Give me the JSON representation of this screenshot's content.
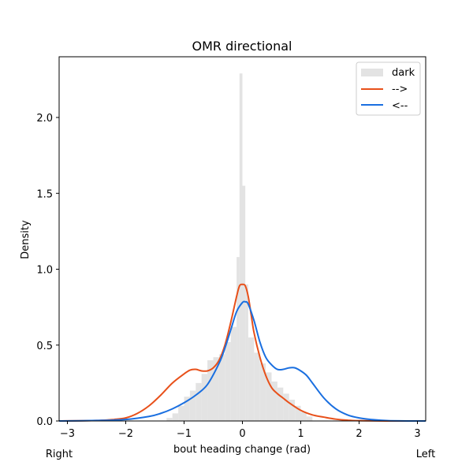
{
  "chart_data": {
    "type": "area",
    "title": "OMR directional",
    "xlabel": "bout heading change (rad)",
    "ylabel": "Density",
    "xlim": [
      -3.14159,
      3.14159
    ],
    "ylim": [
      0,
      2.4
    ],
    "xticks": [
      -3,
      -2,
      -1,
      0,
      1,
      2,
      3
    ],
    "xtick_labels": [
      "−3",
      "−2",
      "−1",
      "0",
      "1",
      "2",
      "3"
    ],
    "yticks": [
      0,
      0.5,
      1.0,
      1.5,
      2.0
    ],
    "ytick_labels": [
      "0.0",
      "0.5",
      "1.0",
      "1.5",
      "2.0"
    ],
    "corner_labels": {
      "left": "Right",
      "right": "Left"
    },
    "legend_position": "top-right",
    "grid": false,
    "histogram": {
      "name": "dark",
      "color": "#e3e3e3",
      "bin_edges": [
        -1.3,
        -1.2,
        -1.1,
        -1.0,
        -0.9,
        -0.8,
        -0.7,
        -0.6,
        -0.5,
        -0.4,
        -0.3,
        -0.2,
        -0.1,
        -0.05,
        0.0,
        0.05,
        0.1,
        0.2,
        0.3,
        0.4,
        0.5,
        0.6,
        0.7,
        0.8,
        0.9,
        1.0,
        1.1,
        1.2
      ],
      "values": [
        0.02,
        0.05,
        0.1,
        0.16,
        0.2,
        0.25,
        0.31,
        0.4,
        0.42,
        0.44,
        0.52,
        0.62,
        1.08,
        2.29,
        1.55,
        0.9,
        0.55,
        0.45,
        0.38,
        0.32,
        0.26,
        0.22,
        0.18,
        0.14,
        0.1,
        0.06,
        0.03
      ]
    },
    "series": [
      {
        "name": "-->",
        "color": "#e8501a",
        "x": [
          -3.14,
          -2.5,
          -2.2,
          -2.0,
          -1.8,
          -1.6,
          -1.4,
          -1.2,
          -1.0,
          -0.9,
          -0.8,
          -0.7,
          -0.6,
          -0.5,
          -0.4,
          -0.3,
          -0.2,
          -0.1,
          -0.05,
          0.0,
          0.05,
          0.1,
          0.15,
          0.2,
          0.3,
          0.4,
          0.5,
          0.6,
          0.7,
          0.8,
          1.0,
          1.2,
          1.4,
          1.6,
          1.8,
          2.0,
          2.5,
          3.14
        ],
        "values": [
          0.0,
          0.003,
          0.01,
          0.02,
          0.05,
          0.1,
          0.17,
          0.25,
          0.31,
          0.335,
          0.34,
          0.33,
          0.33,
          0.35,
          0.4,
          0.5,
          0.65,
          0.82,
          0.89,
          0.9,
          0.89,
          0.82,
          0.7,
          0.58,
          0.42,
          0.3,
          0.22,
          0.18,
          0.15,
          0.12,
          0.07,
          0.04,
          0.025,
          0.012,
          0.005,
          0.002,
          0.0,
          0.0
        ]
      },
      {
        "name": "<--",
        "color": "#1a6fe0",
        "x": [
          -3.14,
          -2.5,
          -2.0,
          -1.6,
          -1.4,
          -1.2,
          -1.0,
          -0.8,
          -0.6,
          -0.4,
          -0.3,
          -0.2,
          -0.1,
          0.0,
          0.05,
          0.1,
          0.2,
          0.3,
          0.4,
          0.5,
          0.6,
          0.7,
          0.8,
          0.9,
          1.0,
          1.1,
          1.2,
          1.4,
          1.6,
          1.8,
          2.0,
          2.2,
          2.5,
          3.14
        ],
        "values": [
          0.0,
          0.003,
          0.01,
          0.03,
          0.05,
          0.08,
          0.12,
          0.17,
          0.24,
          0.38,
          0.48,
          0.6,
          0.72,
          0.78,
          0.785,
          0.77,
          0.66,
          0.52,
          0.42,
          0.37,
          0.34,
          0.34,
          0.35,
          0.35,
          0.33,
          0.3,
          0.25,
          0.15,
          0.08,
          0.04,
          0.02,
          0.01,
          0.002,
          0.0
        ]
      }
    ]
  }
}
